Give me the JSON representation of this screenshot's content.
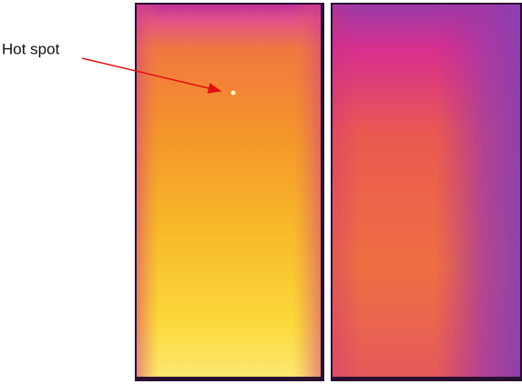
{
  "annotation": {
    "label": "Hot spot"
  }
}
